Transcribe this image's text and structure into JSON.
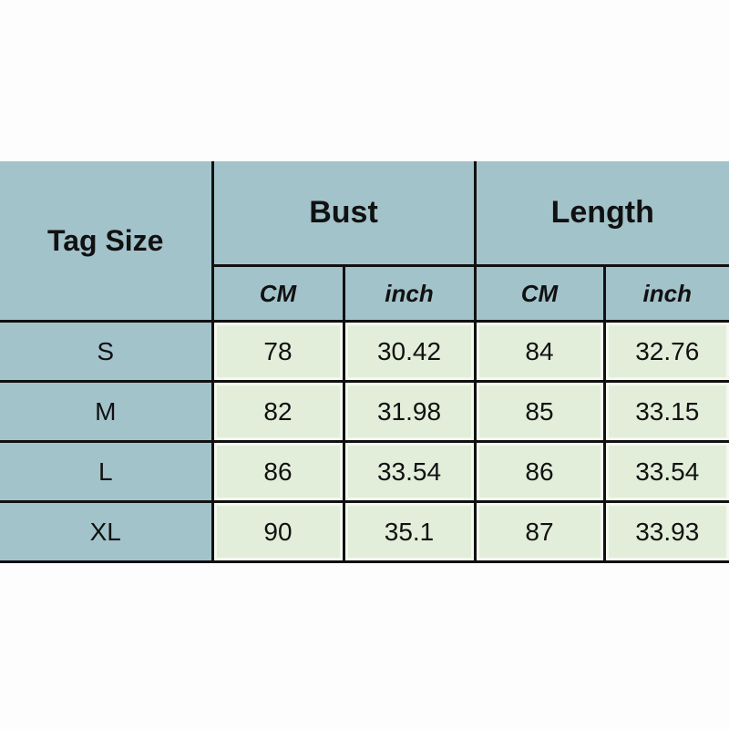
{
  "header": {
    "tag_size": "Tag Size",
    "bust": "Bust",
    "length": "Length",
    "units": [
      "CM",
      "inch",
      "CM",
      "inch"
    ]
  },
  "rows": [
    {
      "size": "S",
      "bust_cm": "78",
      "bust_inch": "30.42",
      "length_cm": "84",
      "length_inch": "32.76"
    },
    {
      "size": "M",
      "bust_cm": "82",
      "bust_inch": "31.98",
      "length_cm": "85",
      "length_inch": "33.15"
    },
    {
      "size": "L",
      "bust_cm": "86",
      "bust_inch": "33.54",
      "length_cm": "86",
      "length_inch": "33.54"
    },
    {
      "size": "XL",
      "bust_cm": "90",
      "bust_inch": "35.1",
      "length_cm": "87",
      "length_inch": "33.93"
    }
  ],
  "colors": {
    "header_bg": "#a3c3cb",
    "cell_bg": "#e2eed9",
    "border": "#111111"
  }
}
